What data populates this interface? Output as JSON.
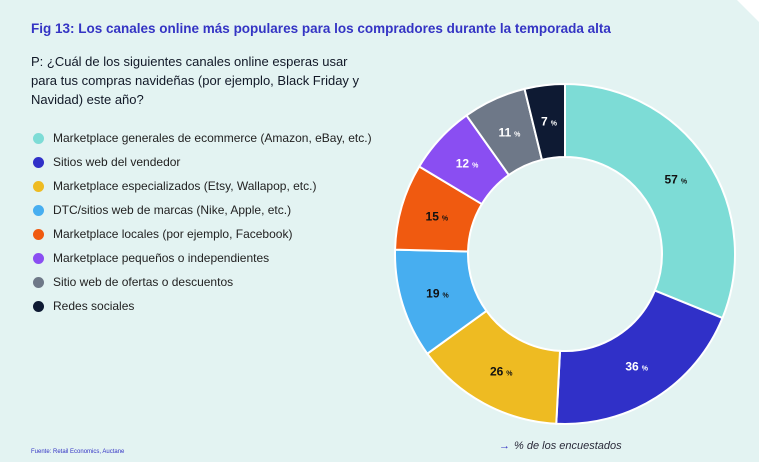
{
  "figure": {
    "title": "Fig 13: Los canales online más populares para los compradores durante la temporada alta",
    "question": "P: ¿Cuál de los siguientes canales online esperas usar para tus compras navideñas (por ejemplo, Black Friday y Navidad) este año?",
    "source": "Fuente: Retail Economics, Auctane",
    "note_arrow": "→",
    "note": "% de los encuestados"
  },
  "chart_data": {
    "type": "pie",
    "style": "donut",
    "unit": "%",
    "categories": [
      "Marketplace generales de ecommerce (Amazon, eBay, etc.)",
      "Sitios web del vendedor",
      "Marketplace especializados (Etsy, Wallapop, etc.)",
      "DTC/sitios web de marcas (Nike, Apple, etc.)",
      "Marketplace locales (por ejemplo, Facebook)",
      "Marketplace pequeños o independientes",
      "Sitio web de ofertas o descuentos",
      "Redes sociales"
    ],
    "values": [
      57,
      36,
      26,
      19,
      15,
      12,
      11,
      7
    ],
    "colors": [
      "#7ddcd6",
      "#3030c8",
      "#eebb22",
      "#47aef0",
      "#f05a10",
      "#8a4ef2",
      "#6e7888",
      "#0e1a33"
    ],
    "label_colors": [
      "#111111",
      "#ffffff",
      "#111111",
      "#111111",
      "#111111",
      "#ffffff",
      "#ffffff",
      "#ffffff"
    ],
    "legend_placement": "left"
  }
}
